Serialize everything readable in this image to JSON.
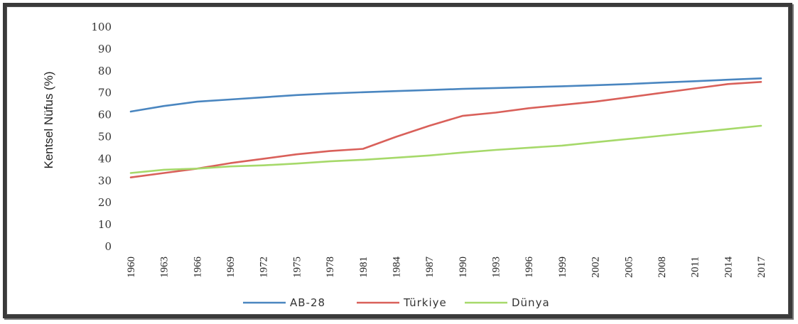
{
  "chart_data": {
    "type": "line",
    "xlabel": "",
    "ylabel": "Kentsel Nüfus (%)",
    "ylim": [
      0,
      100
    ],
    "yticks": [
      0,
      10,
      20,
      30,
      40,
      50,
      60,
      70,
      80,
      90,
      100
    ],
    "x": [
      1960,
      1963,
      1966,
      1969,
      1972,
      1975,
      1978,
      1981,
      1984,
      1987,
      1990,
      1993,
      1996,
      1999,
      2002,
      2005,
      2008,
      2011,
      2014,
      2017
    ],
    "xtick_labels": [
      "1960",
      "1963",
      "1966",
      "1969",
      "1972",
      "1975",
      "1978",
      "1981",
      "1984",
      "1987",
      "1990",
      "1993",
      "1996",
      "1999",
      "2002",
      "2005",
      "2008",
      "2011",
      "2014",
      "2017"
    ],
    "grid": false,
    "legend_position": "bottom",
    "series": [
      {
        "name": "AB-28",
        "color": "#4a86c0",
        "values": [
          61.5,
          64,
          66,
          67,
          68,
          69,
          69.7,
          70.3,
          70.8,
          71.3,
          71.8,
          72.2,
          72.6,
          73,
          73.5,
          74,
          74.7,
          75.3,
          76,
          76.6
        ]
      },
      {
        "name": "Türkiye",
        "color": "#d9605a",
        "values": [
          31.5,
          33.5,
          35.5,
          38,
          40,
          42,
          43.5,
          44.5,
          50,
          55,
          59.5,
          61,
          63,
          64.5,
          66,
          68,
          70,
          72,
          74,
          75
        ]
      },
      {
        "name": "Dünya",
        "color": "#a6d96a",
        "values": [
          33.5,
          35,
          35.5,
          36.5,
          37,
          37.8,
          38.8,
          39.5,
          40.5,
          41.5,
          42.8,
          44,
          45,
          46,
          47.5,
          49,
          50.5,
          52,
          53.5,
          55
        ]
      }
    ]
  }
}
